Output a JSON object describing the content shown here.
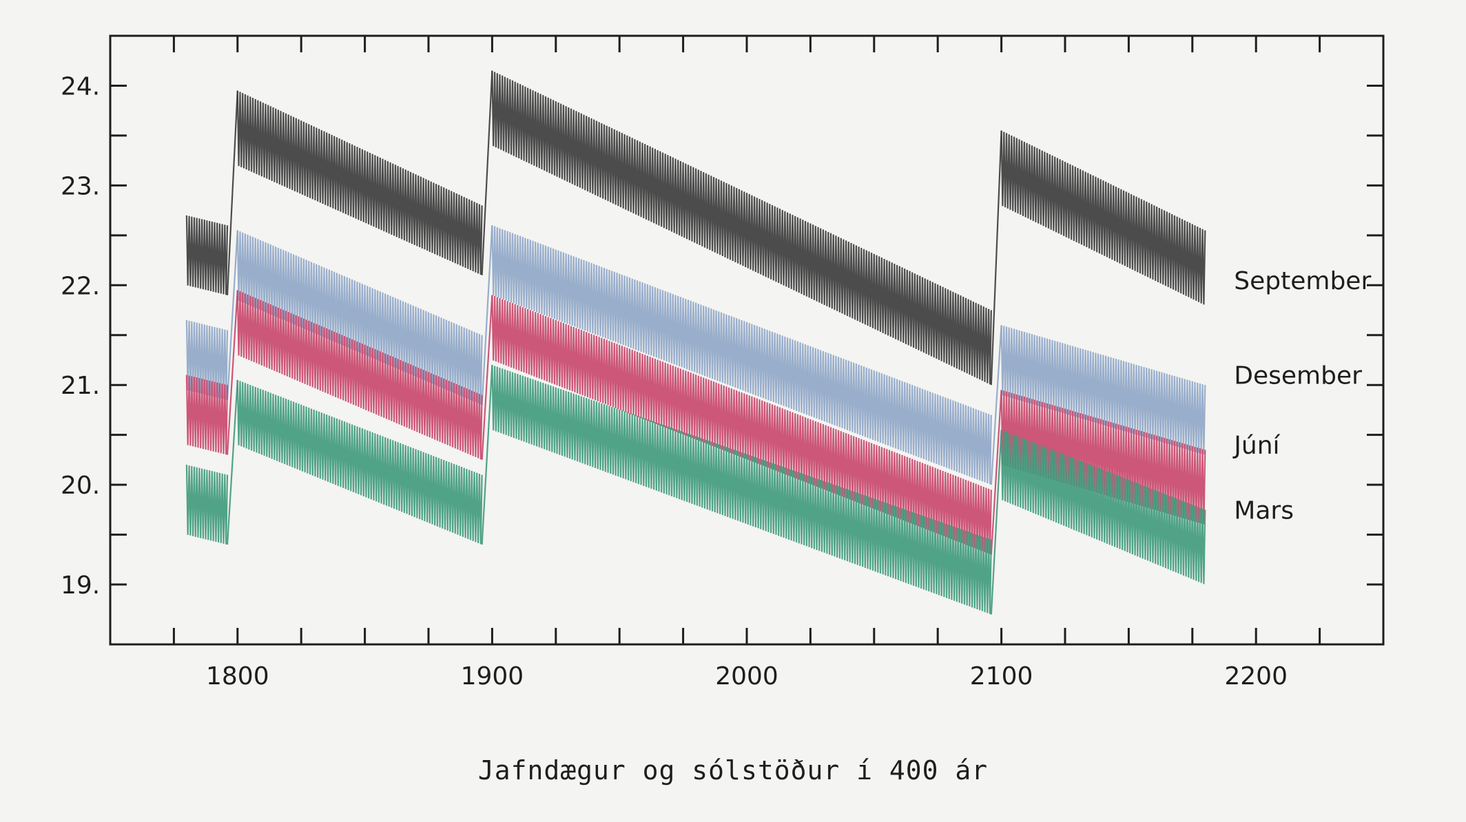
{
  "chart_data": {
    "type": "line",
    "title": "Jafndægur og sólstöður í 400 ár",
    "xlabel": "",
    "ylabel": "",
    "xlim": [
      1750,
      2250
    ],
    "ylim": [
      18.4,
      24.5
    ],
    "xticks": [
      1750,
      1775,
      1800,
      1825,
      1850,
      1875,
      1900,
      1925,
      1950,
      1975,
      2000,
      2025,
      2050,
      2075,
      2100,
      2125,
      2150,
      2175,
      2200,
      2225,
      2250
    ],
    "xtick_labels": [
      {
        "x": 1800,
        "label": "1800"
      },
      {
        "x": 1900,
        "label": "1900"
      },
      {
        "x": 2000,
        "label": "2000"
      },
      {
        "x": 2100,
        "label": "2100"
      },
      {
        "x": 2200,
        "label": "2200"
      }
    ],
    "yticks": [
      19,
      19.5,
      20,
      20.5,
      21,
      21.5,
      22,
      22.5,
      23,
      23.5,
      24
    ],
    "ytick_labels": [
      {
        "y": 19,
        "label": "19."
      },
      {
        "y": 20,
        "label": "20."
      },
      {
        "y": 21,
        "label": "21."
      },
      {
        "y": 22,
        "label": "22."
      },
      {
        "y": 23,
        "label": "23."
      },
      {
        "y": 24,
        "label": "24."
      }
    ],
    "grid": false,
    "legend": "labels at right end of each series",
    "pattern": "each year's date shifts by about +0.25 day, resetting every 4th (leap) year; century years 1800 and 1900 and 2100 are not leap years, causing upward jumps",
    "series": [
      {
        "name": "September",
        "color": "#3a3a3a",
        "label_y": 22.05,
        "segments": [
          {
            "x": [
              1780,
              1796
            ],
            "y_low": [
              22.0,
              21.9
            ],
            "y_high": [
              22.7,
              22.6
            ]
          },
          {
            "x": [
              1800,
              1896
            ],
            "y_low": [
              23.2,
              22.1
            ],
            "y_high": [
              23.95,
              22.8
            ]
          },
          {
            "x": [
              1900,
              2096
            ],
            "y_low": [
              23.4,
              21.0
            ],
            "y_high": [
              24.15,
              21.75
            ]
          },
          {
            "x": [
              2100,
              2180
            ],
            "y_low": [
              22.8,
              21.8
            ],
            "y_high": [
              23.55,
              22.55
            ]
          }
        ]
      },
      {
        "name": "Desember",
        "color": "#8fa6c7",
        "label_y": 21.1,
        "segments": [
          {
            "x": [
              1780,
              1796
            ],
            "y_low": [
              20.95,
              20.85
            ],
            "y_high": [
              21.65,
              21.55
            ]
          },
          {
            "x": [
              1800,
              1896
            ],
            "y_low": [
              21.85,
              20.8
            ],
            "y_high": [
              22.55,
              21.5
            ]
          },
          {
            "x": [
              1900,
              2096
            ],
            "y_low": [
              21.9,
              20.0
            ],
            "y_high": [
              22.6,
              20.7
            ]
          },
          {
            "x": [
              2100,
              2180
            ],
            "y_low": [
              20.9,
              20.3
            ],
            "y_high": [
              21.6,
              21.0
            ]
          }
        ]
      },
      {
        "name": "Júní",
        "color": "#c8466a",
        "label_y": 20.4,
        "segments": [
          {
            "x": [
              1780,
              1796
            ],
            "y_low": [
              20.4,
              20.3
            ],
            "y_high": [
              21.1,
              21.0
            ]
          },
          {
            "x": [
              1800,
              1896
            ],
            "y_low": [
              21.3,
              20.25
            ],
            "y_high": [
              21.95,
              20.9
            ]
          },
          {
            "x": [
              1900,
              2096
            ],
            "y_low": [
              21.25,
              19.3
            ],
            "y_high": [
              21.9,
              19.95
            ]
          },
          {
            "x": [
              2100,
              2180
            ],
            "y_low": [
              20.2,
              19.6
            ],
            "y_high": [
              20.95,
              20.35
            ]
          }
        ]
      },
      {
        "name": "Mars",
        "color": "#3f9a7c",
        "label_y": 19.75,
        "segments": [
          {
            "x": [
              1780,
              1796
            ],
            "y_low": [
              19.5,
              19.4
            ],
            "y_high": [
              20.2,
              20.1
            ]
          },
          {
            "x": [
              1800,
              1896
            ],
            "y_low": [
              20.4,
              19.4
            ],
            "y_high": [
              21.05,
              20.1
            ]
          },
          {
            "x": [
              1900,
              2096
            ],
            "y_low": [
              20.55,
              18.7
            ],
            "y_high": [
              21.2,
              19.45
            ]
          },
          {
            "x": [
              2100,
              2180
            ],
            "y_low": [
              19.85,
              19.0
            ],
            "y_high": [
              20.55,
              19.75
            ]
          }
        ]
      }
    ]
  }
}
